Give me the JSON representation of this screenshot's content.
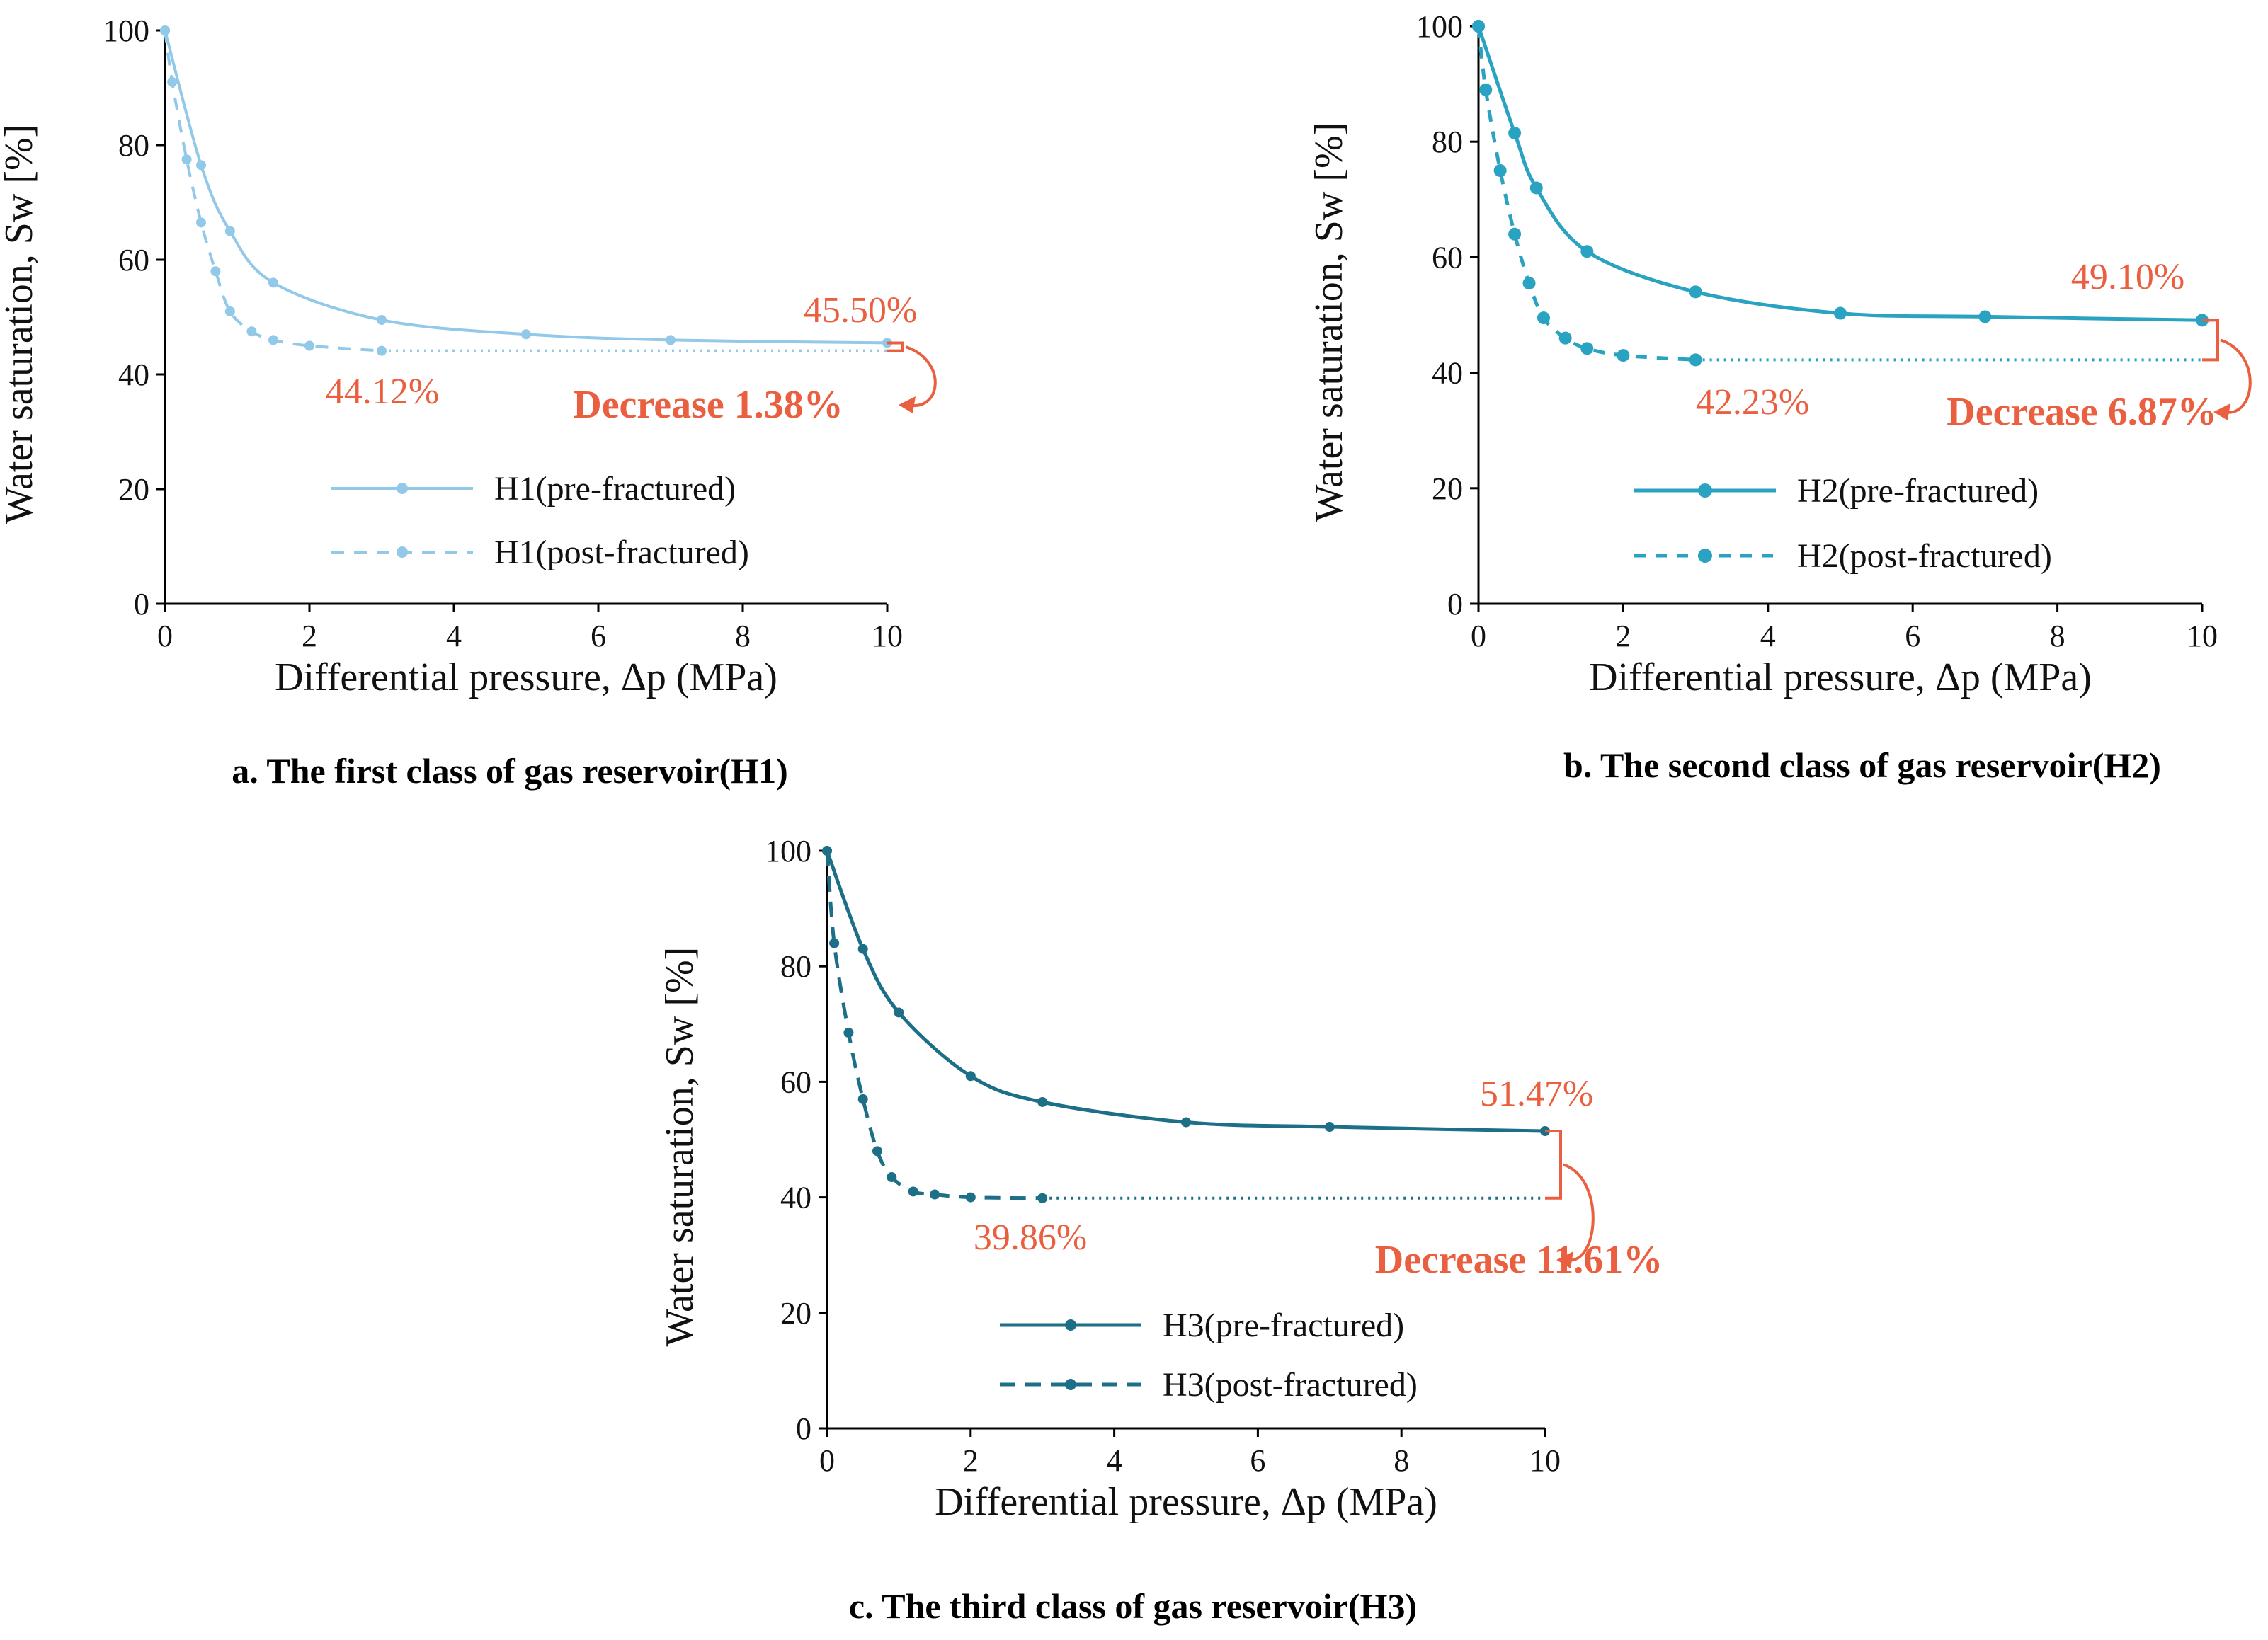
{
  "figure": {
    "captions": [
      "a. The first class of gas reservoir(H1)",
      "b. The second class of gas reservoir(H2)",
      "c. The third class of gas reservoir(H3)"
    ]
  },
  "chart_data": [
    {
      "type": "line",
      "title": "a. The first class of gas reservoir(H1)",
      "xlabel": "Differential pressure, Δp (MPa)",
      "ylabel": "Water saturation, Sw [%]",
      "xlim": [
        0,
        10
      ],
      "ylim": [
        0,
        100
      ],
      "xticks": [
        "0",
        "2",
        "4",
        "6",
        "8",
        "10"
      ],
      "yticks": [
        "0",
        "20",
        "40",
        "60",
        "80",
        "100"
      ],
      "color": "#92c8e8",
      "series": [
        {
          "name": "H1(pre-fractured)",
          "style": "solid",
          "x": [
            0,
            0.5,
            0.9,
            1.5,
            3,
            5,
            7,
            10
          ],
          "y": [
            100,
            76.5,
            65,
            56,
            49.5,
            47,
            46,
            45.5
          ]
        },
        {
          "name": "H1(post-fractured)",
          "style": "dashed",
          "x": [
            0,
            0.1,
            0.3,
            0.5,
            0.7,
            0.9,
            1.2,
            1.5,
            2,
            3
          ],
          "y": [
            100,
            91,
            77.5,
            66.5,
            58,
            51,
            47.5,
            46,
            45,
            44.12
          ]
        }
      ],
      "annotations": {
        "pre_end": "45.50%",
        "post_end": "44.12%",
        "decrease": "Decrease 1.38%"
      }
    },
    {
      "type": "line",
      "title": "b. The second class of gas reservoir(H2)",
      "xlabel": "Differential pressure, Δp (MPa)",
      "ylabel": "Water saturation, Sw [%]",
      "xlim": [
        0,
        10
      ],
      "ylim": [
        0,
        100
      ],
      "xticks": [
        "0",
        "2",
        "4",
        "6",
        "8",
        "10"
      ],
      "yticks": [
        "0",
        "20",
        "40",
        "60",
        "80",
        "100"
      ],
      "color": "#2aa3c2",
      "series": [
        {
          "name": "H2(pre-fractured)",
          "style": "solid",
          "x": [
            0,
            0.5,
            0.8,
            1.5,
            3,
            5,
            7,
            10
          ],
          "y": [
            100,
            81.5,
            72,
            61,
            54,
            50.3,
            49.7,
            49.1
          ]
        },
        {
          "name": "H2(post-fractured)",
          "style": "dashed",
          "x": [
            0,
            0.1,
            0.3,
            0.5,
            0.7,
            0.9,
            1.2,
            1.5,
            2,
            3
          ],
          "y": [
            100,
            89,
            75,
            64,
            55.5,
            49.5,
            46,
            44.2,
            43,
            42.23
          ]
        }
      ],
      "annotations": {
        "pre_end": "49.10%",
        "post_end": "42.23%",
        "decrease": "Decrease 6.87%"
      }
    },
    {
      "type": "line",
      "title": "c. The third class of gas reservoir(H3)",
      "xlabel": "Differential pressure, Δp (MPa)",
      "ylabel": "Water saturation, Sw [%]",
      "xlim": [
        0,
        10
      ],
      "ylim": [
        0,
        100
      ],
      "xticks": [
        "0",
        "2",
        "4",
        "6",
        "8",
        "10"
      ],
      "yticks": [
        "0",
        "20",
        "40",
        "60",
        "80",
        "100"
      ],
      "color": "#1d6f88",
      "series": [
        {
          "name": "H3(pre-fractured)",
          "style": "solid",
          "x": [
            0,
            0.5,
            1,
            2,
            3,
            5,
            7,
            10
          ],
          "y": [
            100,
            83,
            72,
            61,
            56.5,
            53,
            52.2,
            51.47
          ]
        },
        {
          "name": "H3(post-fractured)",
          "style": "dashed",
          "x": [
            0,
            0.1,
            0.3,
            0.5,
            0.7,
            0.9,
            1.2,
            1.5,
            2,
            3
          ],
          "y": [
            100,
            84,
            68.5,
            57,
            48,
            43.5,
            41,
            40.5,
            40,
            39.86
          ]
        }
      ],
      "annotations": {
        "pre_end": "51.47%",
        "post_end": "39.86%",
        "decrease": "Decrease 11.61%"
      }
    }
  ]
}
